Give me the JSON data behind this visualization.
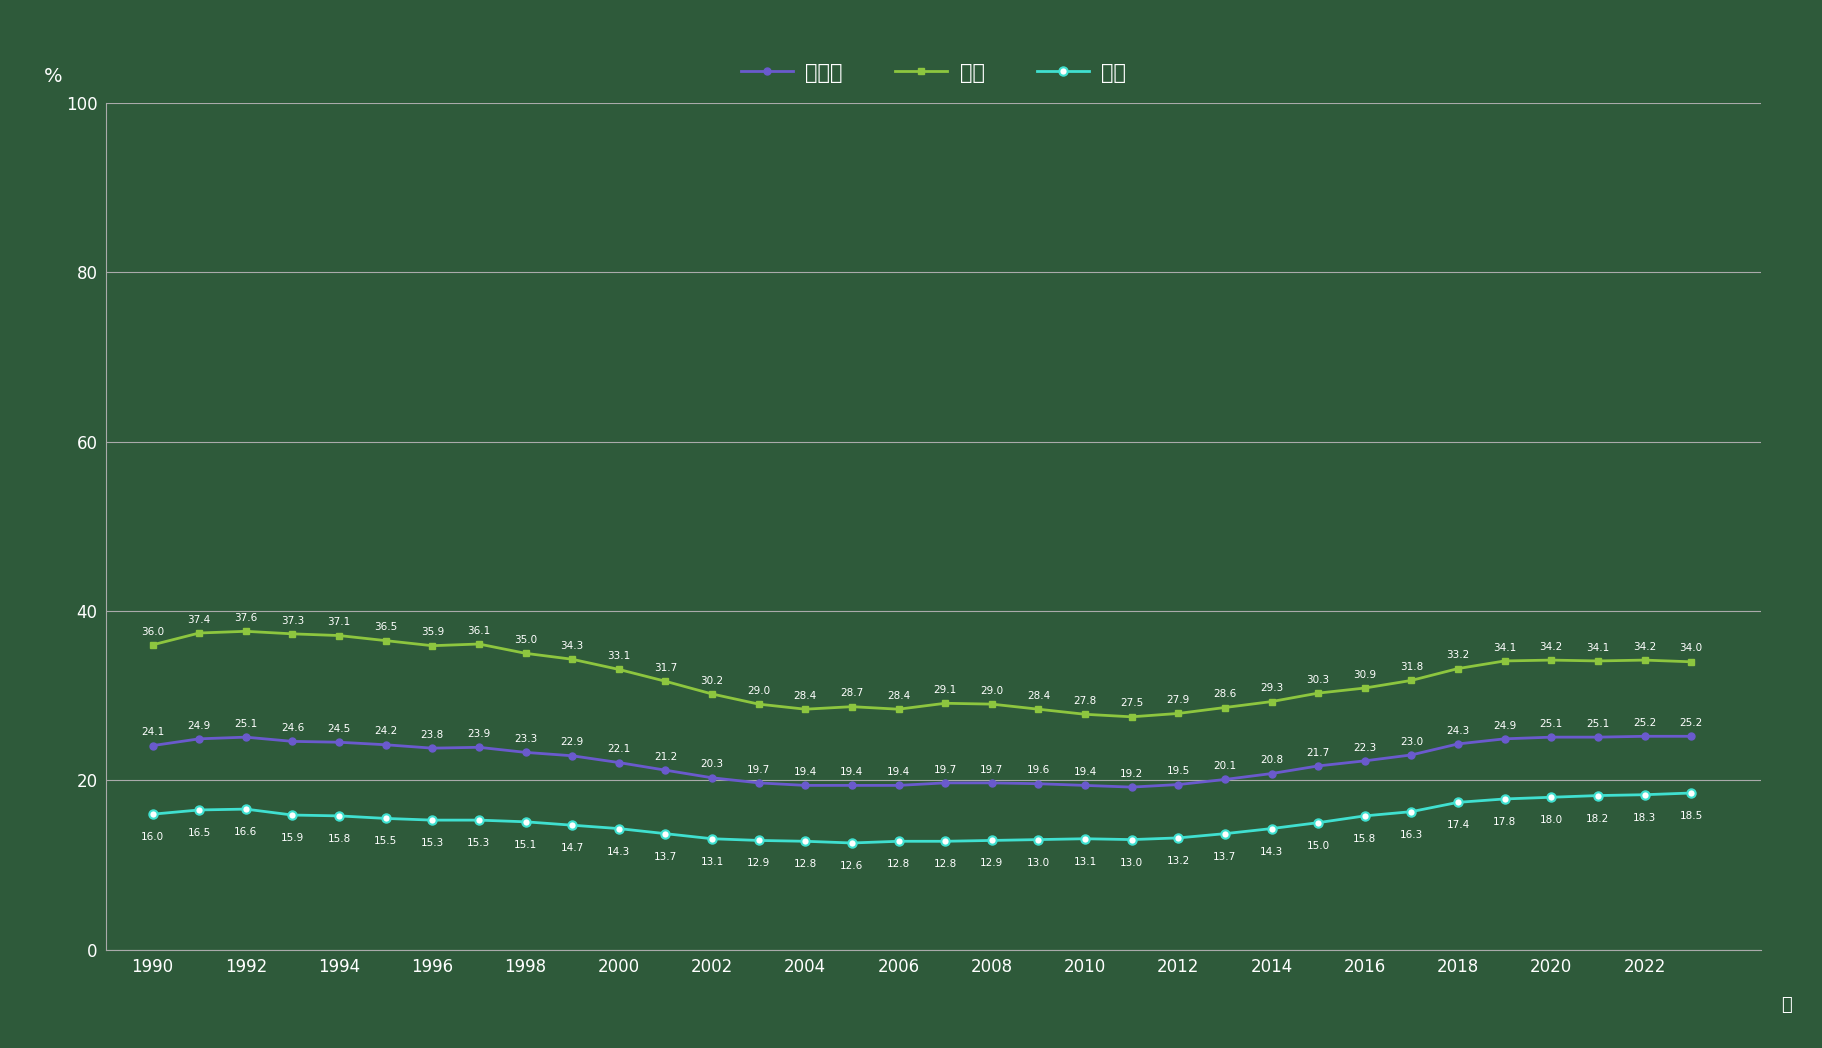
{
  "years": [
    1990,
    1991,
    1992,
    1993,
    1994,
    1995,
    1996,
    1997,
    1998,
    1999,
    2000,
    2001,
    2002,
    2003,
    2004,
    2005,
    2006,
    2007,
    2008,
    2009,
    2010,
    2011,
    2012,
    2013,
    2014,
    2015,
    2016,
    2017,
    2018,
    2019,
    2020,
    2021,
    2022,
    2023
  ],
  "danjo": [
    24.1,
    24.9,
    25.1,
    24.6,
    24.5,
    24.2,
    23.8,
    23.9,
    23.3,
    22.9,
    22.1,
    21.2,
    20.3,
    19.7,
    19.4,
    19.4,
    19.4,
    19.7,
    19.7,
    19.6,
    19.4,
    19.2,
    19.5,
    20.1,
    20.8,
    21.7,
    22.3,
    23.0,
    24.3,
    24.9,
    25.1,
    25.1,
    25.2,
    25.2
  ],
  "dansei": [
    36.0,
    37.4,
    37.6,
    37.3,
    37.1,
    36.5,
    35.9,
    36.1,
    35.0,
    34.3,
    33.1,
    31.7,
    30.2,
    29.0,
    28.4,
    28.7,
    28.4,
    29.1,
    29.0,
    28.4,
    27.8,
    27.5,
    27.9,
    28.6,
    29.3,
    30.3,
    30.9,
    31.8,
    33.2,
    34.1,
    34.2,
    34.1,
    34.2,
    34.0
  ],
  "josei": [
    16.0,
    16.5,
    16.6,
    15.9,
    15.8,
    15.5,
    15.3,
    15.3,
    15.1,
    14.7,
    14.3,
    13.7,
    13.1,
    12.9,
    12.8,
    12.6,
    12.8,
    12.8,
    12.9,
    13.0,
    13.1,
    13.0,
    13.2,
    13.7,
    14.3,
    15.0,
    15.8,
    16.3,
    17.4,
    17.8,
    18.0,
    18.2,
    18.3,
    18.5
  ],
  "danjo_color": "#6a5acd",
  "dansei_color": "#8dc63f",
  "josei_color": "#40e0d0",
  "background_color": "#2e5a3a",
  "grid_color": "#aaaaaa",
  "legend_labels": [
    "男女計",
    "男性",
    "女性"
  ],
  "ylabel": "%",
  "xlabel": "年",
  "ylim": [
    0,
    100
  ],
  "yticks": [
    0,
    20,
    40,
    60,
    80,
    100
  ],
  "xtick_years": [
    1990,
    1992,
    1994,
    1996,
    1998,
    2000,
    2002,
    2004,
    2006,
    2008,
    2010,
    2012,
    2014,
    2016,
    2018,
    2020,
    2022
  ]
}
